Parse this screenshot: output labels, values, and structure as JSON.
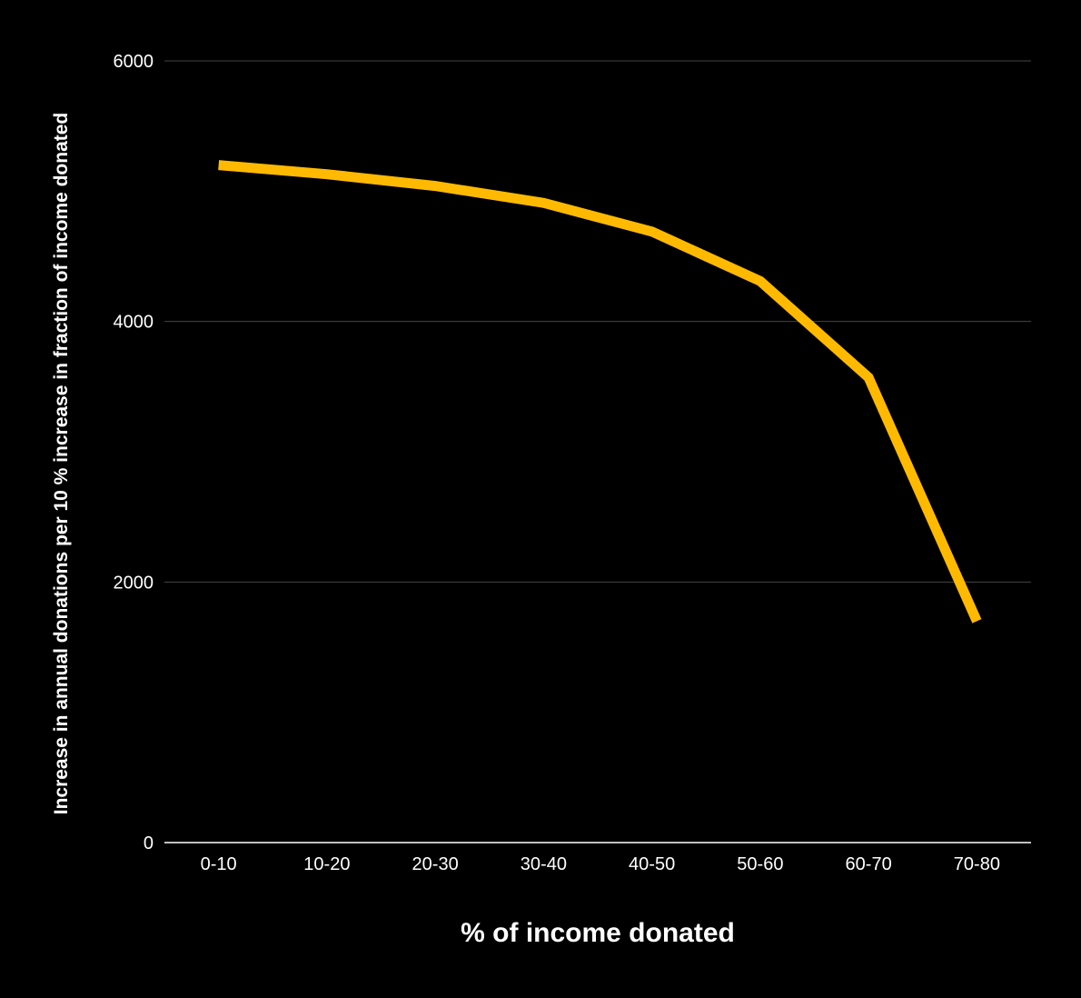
{
  "chart_data": {
    "type": "line",
    "title": "",
    "xlabel": "% of income donated",
    "ylabel": "Increase in annual donations per 10 % increase in fraction of income donated",
    "categories": [
      "0-10",
      "10-20",
      "20-30",
      "30-40",
      "40-50",
      "50-60",
      "60-70",
      "70-80"
    ],
    "series": [
      {
        "values": [
          5200,
          5130,
          5040,
          4910,
          4690,
          4310,
          3570,
          1700
        ],
        "color": "#ffba00"
      }
    ],
    "ylim": [
      0,
      6000
    ],
    "yticks": [
      "0",
      "2000",
      "4000",
      "6000"
    ],
    "grid": true,
    "legend": "none",
    "colors": {
      "background": "#000000",
      "gridline": "#444444",
      "baseline": "#ffffff",
      "text": "#ffffff"
    }
  }
}
